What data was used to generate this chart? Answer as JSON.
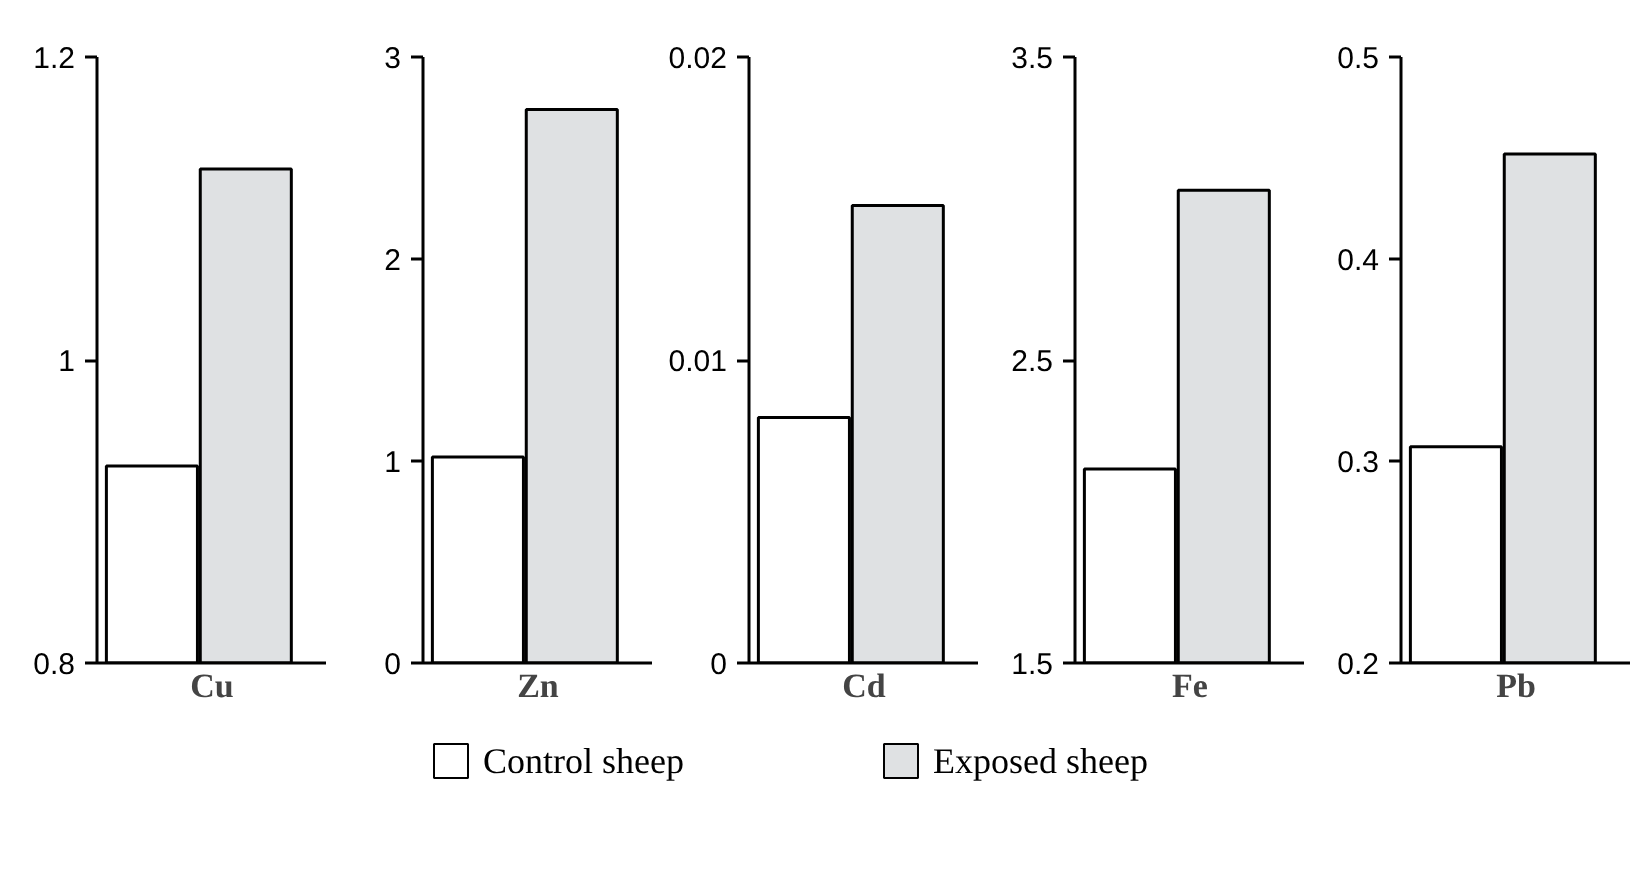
{
  "chart_data": [
    {
      "type": "bar",
      "categories": [
        null
      ],
      "xlabel": "Cu",
      "ylim": [
        0.8,
        1.2
      ],
      "yticks": [
        0.8,
        1,
        1.2
      ],
      "legend": "bottom",
      "series": [
        {
          "name": "Control sheep",
          "color": "#ffffff",
          "values": [
            0.93
          ]
        },
        {
          "name": "Exposed sheep",
          "color": "#dfe1e3",
          "values": [
            1.126
          ]
        }
      ]
    },
    {
      "type": "bar",
      "categories": [
        null
      ],
      "xlabel": "Zn",
      "ylim": [
        0,
        3
      ],
      "yticks": [
        0,
        1,
        2,
        3
      ],
      "series": [
        {
          "color": "#ffffff",
          "values": [
            1.02
          ]
        },
        {
          "color": "#dfe1e3",
          "values": [
            2.74
          ]
        }
      ]
    },
    {
      "type": "bar",
      "categories": [
        null
      ],
      "xlabel": "Cd",
      "ylim": [
        0,
        0.02
      ],
      "yticks": [
        0,
        0.01,
        0.02
      ],
      "series": [
        {
          "color": "#ffffff",
          "values": [
            0.0081
          ]
        },
        {
          "color": "#dfe1e3",
          "values": [
            0.0151
          ]
        }
      ]
    },
    {
      "type": "bar",
      "categories": [
        null
      ],
      "xlabel": "Fe",
      "ylim": [
        1.5,
        3.5
      ],
      "yticks": [
        1.5,
        2.5,
        3.5
      ],
      "series": [
        {
          "color": "#ffffff",
          "values": [
            2.14
          ]
        },
        {
          "color": "#dfe1e3",
          "values": [
            3.06
          ]
        }
      ]
    },
    {
      "type": "bar",
      "categories": [
        null
      ],
      "xlabel": "Pb",
      "ylim": [
        0.2,
        0.5
      ],
      "yticks": [
        0.2,
        0.3,
        0.4,
        0.5
      ],
      "series": [
        {
          "color": "#ffffff",
          "values": [
            0.307
          ]
        },
        {
          "color": "#dfe1e3",
          "values": [
            0.452
          ]
        }
      ]
    }
  ]
}
